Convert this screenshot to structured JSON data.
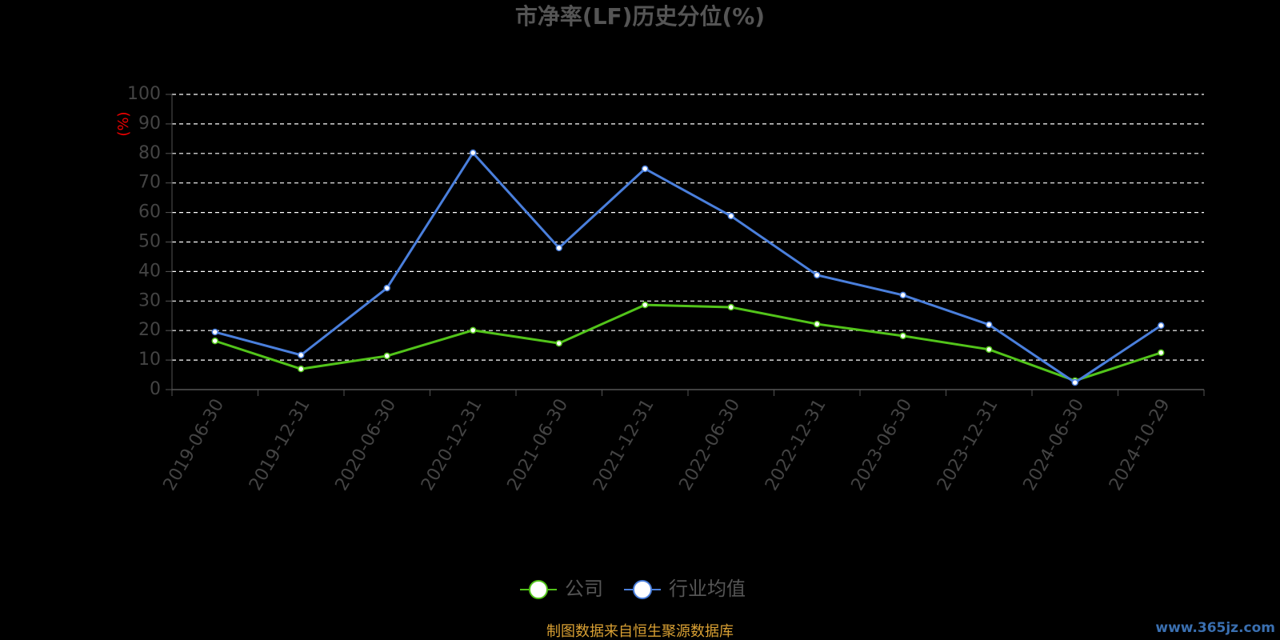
{
  "chart_data": {
    "type": "line",
    "title": "市净率(LF)历史分位(%)",
    "y_label": "(%)",
    "categories": [
      "2019-06-30",
      "2019-12-31",
      "2020-06-30",
      "2020-12-31",
      "2021-06-30",
      "2021-12-31",
      "2022-06-30",
      "2022-12-31",
      "2023-06-30",
      "2023-12-31",
      "2024-06-30",
      "2024-10-29"
    ],
    "series": [
      {
        "name": "公司",
        "color": "#52c41a",
        "values": [
          16.5,
          7.0,
          11.4,
          20.1,
          15.7,
          28.7,
          27.9,
          22.2,
          18.2,
          13.6,
          3.0,
          12.5
        ]
      },
      {
        "name": "行业均值",
        "color": "#4a7fdc",
        "values": [
          19.5,
          11.7,
          34.4,
          80.2,
          48.0,
          74.8,
          58.8,
          38.8,
          32.0,
          22.0,
          2.4,
          21.7
        ]
      }
    ],
    "ylim": [
      0,
      100
    ],
    "yticks": [
      0,
      10,
      20,
      30,
      40,
      50,
      60,
      70,
      80,
      90,
      100
    ],
    "grid": true,
    "legend": "bottom",
    "source": "制图数据来自恒生聚源数据库",
    "watermark": "www.365jz.com"
  }
}
